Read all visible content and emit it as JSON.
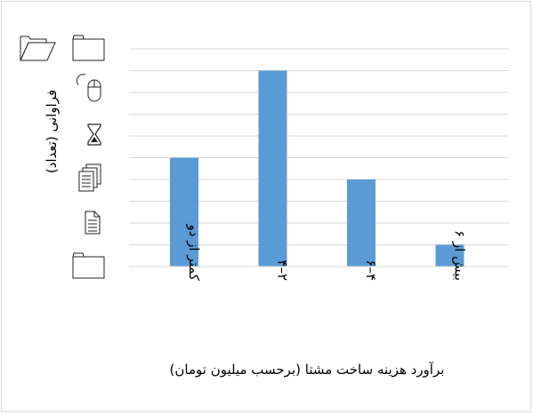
{
  "chart_data": {
    "type": "bar",
    "categories": [
      "کمتر از دو",
      "۲–۴",
      "۴–۶",
      "بیش از ۶"
    ],
    "values": [
      5,
      9,
      4,
      1
    ],
    "xlabel": "برآورد هزینه ساخت مشتا (برحسب میلیون تومان)",
    "ylabel": "فراوانی (تعداد)",
    "ylim": [
      0,
      10
    ],
    "ytick_step": 1,
    "grid": true,
    "bar_color": "#5b9bd5",
    "grid_color": "#d9d9d9",
    "text_color": "#000000"
  },
  "icons": [
    "folder-open-icon",
    "folder-icon",
    "mouse-icon",
    "hourglass-icon",
    "documents-stack-icon",
    "document-icon",
    "folder-icon"
  ]
}
